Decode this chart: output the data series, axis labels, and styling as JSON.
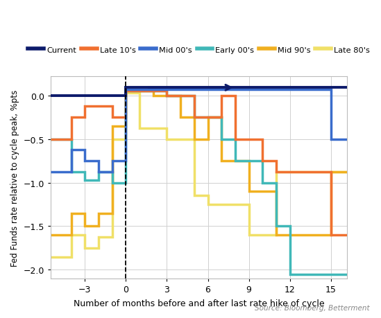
{
  "ylabel": "Fed Funds rate relative to cycle peak, %pts",
  "xlabel": "Number of months before and after last rate hike of cycle",
  "source": "Source: Bloomberg, Betterment",
  "xlim": [
    -5.5,
    16.2
  ],
  "ylim": [
    -2.1,
    0.22
  ],
  "xticks": [
    -3,
    0,
    3,
    6,
    9,
    12,
    15
  ],
  "yticks": [
    0.0,
    -0.5,
    -1.0,
    -1.5,
    -2.0
  ],
  "series": [
    {
      "label": "Current",
      "color": "#0d1b6b",
      "lw": 2.8,
      "xy": [
        [
          -5.5,
          0.0
        ],
        [
          0.0,
          0.0
        ],
        [
          0.0,
          0.09
        ],
        [
          16.2,
          0.09
        ]
      ],
      "zorder": 6
    },
    {
      "label": "Late 10's",
      "color": "#f07030",
      "lw": 2.5,
      "xy": [
        [
          -5.5,
          -0.5
        ],
        [
          -4.0,
          -0.5
        ],
        [
          -4.0,
          -0.25
        ],
        [
          -3.0,
          -0.25
        ],
        [
          -3.0,
          -0.125
        ],
        [
          -1.0,
          -0.125
        ],
        [
          -1.0,
          -0.25
        ],
        [
          0.0,
          -0.25
        ],
        [
          0.0,
          0.05
        ],
        [
          3.0,
          0.05
        ],
        [
          3.0,
          0.0
        ],
        [
          5.0,
          0.0
        ],
        [
          5.0,
          -0.25
        ],
        [
          7.0,
          -0.25
        ],
        [
          7.0,
          0.0
        ],
        [
          8.0,
          0.0
        ],
        [
          8.0,
          -0.5
        ],
        [
          10.0,
          -0.5
        ],
        [
          10.0,
          -0.75
        ],
        [
          11.0,
          -0.75
        ],
        [
          11.0,
          -0.875
        ],
        [
          13.0,
          -0.875
        ],
        [
          13.0,
          -0.875
        ],
        [
          15.0,
          -0.875
        ],
        [
          15.0,
          -1.6
        ],
        [
          16.2,
          -1.6
        ]
      ],
      "zorder": 4
    },
    {
      "label": "Mid 00's",
      "color": "#3a6ccc",
      "lw": 2.5,
      "xy": [
        [
          -5.5,
          -0.875
        ],
        [
          -4.0,
          -0.875
        ],
        [
          -4.0,
          -0.625
        ],
        [
          -3.0,
          -0.625
        ],
        [
          -3.0,
          -0.75
        ],
        [
          -2.0,
          -0.75
        ],
        [
          -2.0,
          -0.875
        ],
        [
          -1.0,
          -0.875
        ],
        [
          -1.0,
          -0.75
        ],
        [
          0.0,
          -0.75
        ],
        [
          0.0,
          0.07
        ],
        [
          15.0,
          0.07
        ],
        [
          15.0,
          -0.5
        ],
        [
          16.2,
          -0.5
        ]
      ],
      "zorder": 5
    },
    {
      "label": "Early 00's",
      "color": "#40b8b8",
      "lw": 2.5,
      "xy": [
        [
          -5.5,
          -0.5
        ],
        [
          -4.0,
          -0.5
        ],
        [
          -4.0,
          -0.875
        ],
        [
          -3.0,
          -0.875
        ],
        [
          -3.0,
          -0.975
        ],
        [
          -2.0,
          -0.975
        ],
        [
          -2.0,
          -0.875
        ],
        [
          -1.0,
          -0.875
        ],
        [
          -1.0,
          -1.0
        ],
        [
          0.0,
          -1.0
        ],
        [
          0.0,
          0.05
        ],
        [
          3.0,
          0.05
        ],
        [
          3.0,
          0.0
        ],
        [
          5.0,
          0.0
        ],
        [
          5.0,
          -0.25
        ],
        [
          7.0,
          -0.25
        ],
        [
          7.0,
          -0.5
        ],
        [
          8.0,
          -0.5
        ],
        [
          8.0,
          -0.75
        ],
        [
          10.0,
          -0.75
        ],
        [
          10.0,
          -1.0
        ],
        [
          11.0,
          -1.0
        ],
        [
          11.0,
          -1.5
        ],
        [
          12.0,
          -1.5
        ],
        [
          12.0,
          -2.05
        ],
        [
          16.2,
          -2.05
        ]
      ],
      "zorder": 3
    },
    {
      "label": "Mid 90's",
      "color": "#f0b020",
      "lw": 2.5,
      "xy": [
        [
          -5.5,
          -1.6
        ],
        [
          -4.0,
          -1.6
        ],
        [
          -4.0,
          -1.35
        ],
        [
          -3.0,
          -1.35
        ],
        [
          -3.0,
          -1.5
        ],
        [
          -2.0,
          -1.5
        ],
        [
          -2.0,
          -1.35
        ],
        [
          -1.0,
          -1.35
        ],
        [
          -1.0,
          -0.35
        ],
        [
          0.0,
          -0.35
        ],
        [
          0.0,
          0.05
        ],
        [
          2.0,
          0.05
        ],
        [
          2.0,
          0.0
        ],
        [
          4.0,
          0.0
        ],
        [
          4.0,
          -0.25
        ],
        [
          5.0,
          -0.25
        ],
        [
          5.0,
          -0.5
        ],
        [
          6.0,
          -0.5
        ],
        [
          6.0,
          -0.25
        ],
        [
          7.0,
          -0.25
        ],
        [
          7.0,
          -0.75
        ],
        [
          9.0,
          -0.75
        ],
        [
          9.0,
          -1.1
        ],
        [
          11.0,
          -1.1
        ],
        [
          11.0,
          -1.6
        ],
        [
          15.0,
          -1.6
        ],
        [
          15.0,
          -0.875
        ],
        [
          16.2,
          -0.875
        ]
      ],
      "zorder": 2
    },
    {
      "label": "Late 80's",
      "color": "#f0e068",
      "lw": 2.5,
      "xy": [
        [
          -5.5,
          -1.85
        ],
        [
          -4.0,
          -1.85
        ],
        [
          -4.0,
          -1.6
        ],
        [
          -3.0,
          -1.6
        ],
        [
          -3.0,
          -1.75
        ],
        [
          -2.0,
          -1.75
        ],
        [
          -2.0,
          -1.625
        ],
        [
          -1.0,
          -1.625
        ],
        [
          -1.0,
          -0.5
        ],
        [
          0.0,
          -0.5
        ],
        [
          0.0,
          0.03
        ],
        [
          1.0,
          0.03
        ],
        [
          1.0,
          -0.375
        ],
        [
          3.0,
          -0.375
        ],
        [
          3.0,
          -0.5
        ],
        [
          5.0,
          -0.5
        ],
        [
          5.0,
          -1.15
        ],
        [
          6.0,
          -1.15
        ],
        [
          6.0,
          -1.25
        ],
        [
          9.0,
          -1.25
        ],
        [
          9.0,
          -1.6
        ],
        [
          11.0,
          -1.6
        ],
        [
          11.0,
          -0.875
        ],
        [
          16.2,
          -0.875
        ]
      ],
      "zorder": 1
    }
  ],
  "legend_labels": [
    "Current",
    "Late 10's",
    "Mid 00's",
    "Early 00's",
    "Mid 90's",
    "Late 80's"
  ],
  "legend_colors": [
    "#0d1b6b",
    "#f07030",
    "#3a6ccc",
    "#40b8b8",
    "#f0b020",
    "#f0e068"
  ]
}
